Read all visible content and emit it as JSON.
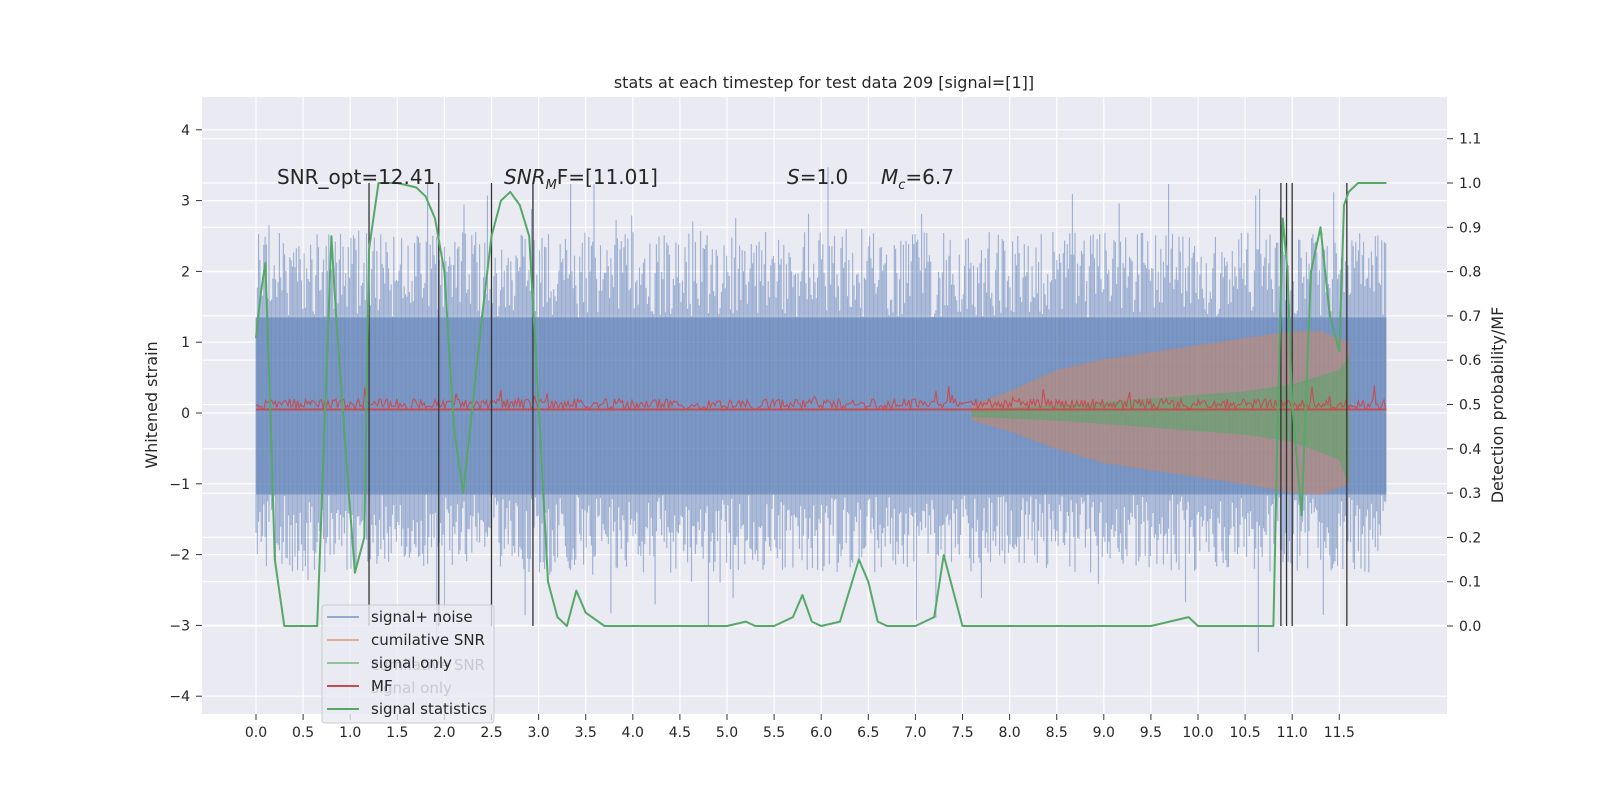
{
  "chart_data": {
    "type": "line",
    "title": "stats at each timestep for test data 209 [signal=[1]]",
    "ylabel_left": "Whitened strain",
    "ylabel_right": "Detection probability/MF",
    "xlim": [
      -0.6,
      12.6
    ],
    "ylim_left": [
      -4.4,
      4.5
    ],
    "ylim_right": [
      -0.2,
      1.2
    ],
    "x_ticks": [
      "0.0",
      "0.5",
      "1.0",
      "1.5",
      "2.0",
      "2.5",
      "3.0",
      "3.5",
      "4.0",
      "4.5",
      "5.0",
      "5.5",
      "6.0",
      "6.5",
      "7.0",
      "7.5",
      "8.0",
      "8.5",
      "9.0",
      "9.5",
      "10.0",
      "10.5",
      "11.0",
      "11.5"
    ],
    "y_ticks_left": [
      "4",
      "3",
      "2",
      "1",
      "0",
      "−1",
      "−2",
      "−3",
      "−4"
    ],
    "y_ticks_right": [
      "1.1",
      "1.0",
      "0.9",
      "0.8",
      "0.7",
      "0.6",
      "0.5",
      "0.4",
      "0.3",
      "0.2",
      "0.1",
      "0.0"
    ],
    "grid": true,
    "legend_position": "lower-left",
    "legend": [
      "signal+ noise",
      "cumilative SNR",
      "signal only",
      "MF",
      "signal statistics"
    ],
    "legend_ghost": [
      "cumilative SNR",
      "signal only"
    ],
    "annotations": {
      "snr_opt": "SNR_opt=12.41",
      "snr_mf": "SNR",
      "snr_mf_sub": "M",
      "snr_mf_rest": "F=[11.01]",
      "s_sym": "S",
      "s_rest": "=1.0",
      "mc_sym": "M",
      "mc_sub": "c",
      "mc_rest": "=6.7"
    },
    "event_markers_x": [
      1.2,
      1.94,
      2.5,
      2.94,
      10.88,
      10.94,
      11.0,
      11.58
    ],
    "noise_envelope": {
      "x_range": [
        0.0,
        12.0
      ],
      "upper_approx": 2.5,
      "lower_approx": -2.2,
      "band_upper": 1.35,
      "band_lower": -1.15
    },
    "cumulative_snr_envelope": {
      "x": [
        7.6,
        8.0,
        8.5,
        9.0,
        9.5,
        10.0,
        10.5,
        11.0,
        11.3,
        11.6
      ],
      "upper": [
        0.1,
        0.3,
        0.6,
        0.75,
        0.85,
        0.95,
        1.05,
        1.15,
        1.15,
        1.0
      ],
      "lower": [
        -0.1,
        -0.25,
        -0.5,
        -0.7,
        -0.8,
        -0.9,
        -1.0,
        -1.12,
        -1.15,
        -1.0
      ]
    },
    "signal_only_envelope": {
      "x": [
        7.6,
        8.5,
        9.5,
        10.5,
        11.0,
        11.5,
        11.6
      ],
      "upper": [
        0.05,
        0.1,
        0.2,
        0.3,
        0.4,
        0.6,
        0.8
      ],
      "lower": [
        -0.05,
        -0.1,
        -0.2,
        -0.3,
        -0.4,
        -0.65,
        -1.0
      ]
    },
    "mf_series": {
      "x_range": [
        0.0,
        12.0
      ],
      "baseline": 0.05,
      "jitter": 0.15
    },
    "signal_statistics": {
      "x": [
        0.0,
        0.05,
        0.1,
        0.15,
        0.2,
        0.3,
        0.5,
        0.65,
        0.72,
        0.8,
        0.85,
        0.95,
        1.05,
        1.15,
        1.2,
        1.3,
        1.5,
        1.7,
        1.8,
        1.9,
        2.0,
        2.1,
        2.2,
        2.3,
        2.4,
        2.5,
        2.6,
        2.7,
        2.8,
        2.9,
        3.0,
        3.1,
        3.2,
        3.3,
        3.4,
        3.5,
        3.7,
        4.0,
        4.5,
        5.0,
        5.2,
        5.3,
        5.5,
        5.7,
        5.8,
        5.9,
        6.0,
        6.2,
        6.4,
        6.5,
        6.6,
        6.7,
        6.8,
        7.0,
        7.2,
        7.3,
        7.4,
        7.5,
        7.6,
        8.0,
        8.5,
        9.0,
        9.5,
        9.9,
        10.0,
        10.2,
        10.5,
        10.8,
        10.85,
        10.9,
        10.95,
        11.0,
        11.1,
        11.2,
        11.3,
        11.4,
        11.5,
        11.55,
        11.6,
        11.7,
        11.8,
        12.0
      ],
      "y": [
        0.65,
        0.75,
        0.82,
        0.5,
        0.15,
        0.0,
        0.0,
        0.0,
        0.4,
        0.88,
        0.7,
        0.4,
        0.12,
        0.2,
        0.85,
        1.0,
        1.0,
        0.99,
        0.97,
        0.92,
        0.8,
        0.45,
        0.3,
        0.5,
        0.7,
        0.88,
        0.96,
        0.98,
        0.95,
        0.88,
        0.5,
        0.1,
        0.02,
        0.0,
        0.08,
        0.03,
        0.0,
        0.0,
        0.0,
        0.0,
        0.01,
        0.0,
        0.0,
        0.02,
        0.07,
        0.01,
        0.0,
        0.01,
        0.15,
        0.1,
        0.01,
        0.0,
        0.0,
        0.0,
        0.02,
        0.16,
        0.08,
        0.0,
        0.0,
        0.0,
        0.0,
        0.0,
        0.0,
        0.02,
        0.0,
        0.0,
        0.0,
        0.0,
        0.5,
        0.92,
        0.8,
        0.5,
        0.25,
        0.8,
        0.9,
        0.7,
        0.62,
        0.95,
        0.98,
        1.0,
        1.0,
        1.0
      ]
    },
    "colors": {
      "background": "#eaeaf2",
      "grid": "#ffffff",
      "signal_noise": "#4c72b0",
      "cumulative_snr": "#dd8452",
      "signal_only": "#55a868",
      "mf": "#c44e52",
      "signal_statistics": "#55a868",
      "markers": "#333333"
    }
  }
}
